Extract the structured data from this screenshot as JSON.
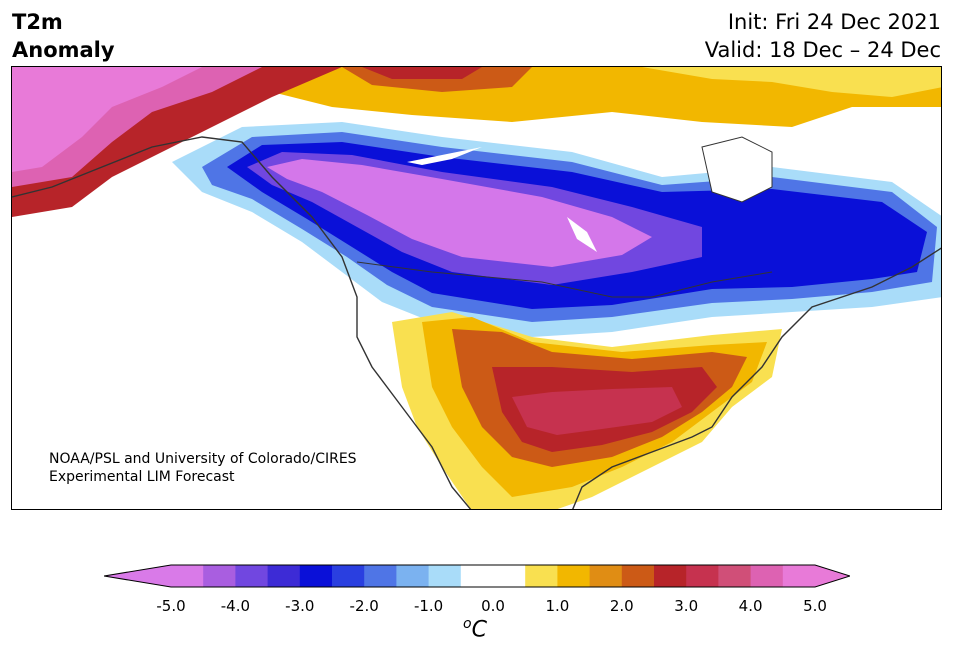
{
  "header": {
    "title_line1": "T2m",
    "title_line2": "Anomaly",
    "init_text": "Init: Fri 24 Dec 2021",
    "valid_text": "Valid: 18 Dec – 24 Dec"
  },
  "credit": {
    "line1": "NOAA/PSL and University of Colorado/CIRES",
    "line2": "Experimental LIM Forecast"
  },
  "colorbar": {
    "unit_base": "C",
    "unit_sup": "o",
    "ticks": [
      "-5.0",
      "-4.0",
      "-3.0",
      "-2.0",
      "-1.0",
      "0.0",
      "1.0",
      "2.0",
      "3.0",
      "4.0",
      "5.0"
    ],
    "colors": [
      "#d97ae8",
      "#a95ee0",
      "#7147e0",
      "#3d2bd6",
      "#0a10d8",
      "#2a3fe0",
      "#4f75e6",
      "#7bb2f0",
      "#a9dcf9",
      "#ffffff",
      "#ffffff",
      "#f9e050",
      "#f2b700",
      "#e08d14",
      "#cc5a16",
      "#b72429",
      "#c6324f",
      "#d04f78",
      "#dd62b2",
      "#e87ad8"
    ],
    "below_color": "#d97ae8",
    "above_color": "#e87ad8"
  },
  "map": {
    "region": "North America",
    "field": "2m temperature anomaly",
    "cold_core_color": "#d477ea",
    "warm_core_color": "#b72429"
  }
}
